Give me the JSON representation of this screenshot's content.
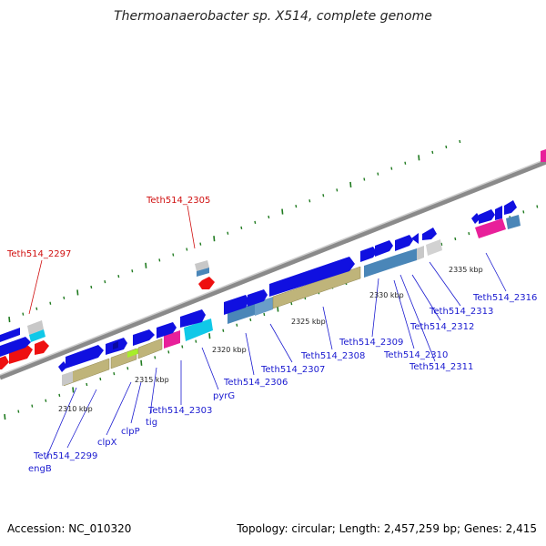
{
  "title": "Thermoanaerobacter sp. X514, complete genome",
  "footer": {
    "accession": "Accession: NC_010320",
    "summary": "Topology: circular; Length: 2,457,259 bp; Genes: 2,415"
  },
  "scale_labels": [
    "2310 kbp",
    "2315 kbp",
    "2320 kbp",
    "2325 kbp",
    "2330 kbp",
    "2335 kbp"
  ],
  "gene_labels": {
    "teth514_2297": "Teth514_2297",
    "teth514_2305": "Teth514_2305",
    "engB": "engB",
    "teth514_2299": "Teth514_2299",
    "clpX": "clpX",
    "clpP": "clpP",
    "tig": "tig",
    "teth514_2303": "Teth514_2303",
    "pyrG": "pyrG",
    "teth514_2306": "Teth514_2306",
    "teth514_2307": "Teth514_2307",
    "teth514_2308": "Teth514_2308",
    "teth514_2309": "Teth514_2309",
    "teth514_2310": "Teth514_2310",
    "teth514_2311": "Teth514_2311",
    "teth514_2312": "Teth514_2312",
    "teth514_2313": "Teth514_2313",
    "teth514_2316": "Teth514_2316"
  },
  "colors": {
    "backbone": "#8a8a8a",
    "cds_blue": "#1010e0",
    "cds_steel": "#4a86b8",
    "cds_khaki": "#bfb47a",
    "cds_gray": "#c8c8c8",
    "cds_magenta": "#e8209a",
    "cds_cyan": "#10c8e8",
    "rna_red": "#ee1010",
    "tick_green": "#1f7a1f",
    "label_blue": "#1a1ad0",
    "label_red": "#d01010"
  }
}
